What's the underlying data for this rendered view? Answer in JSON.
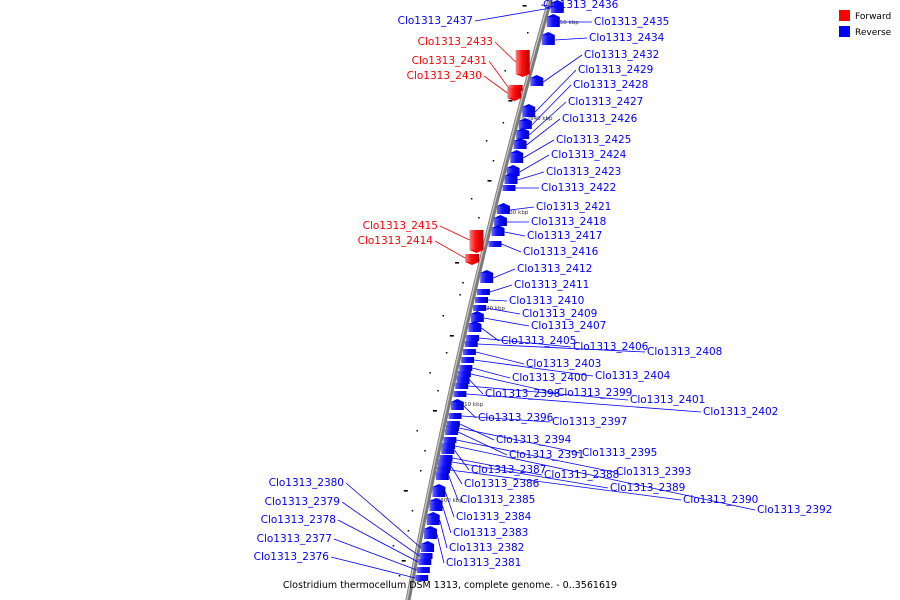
{
  "caption": "Clostridium thermocellum DSM 1313, complete genome. - 0..3561619",
  "colors": {
    "forward": "#ff0000",
    "reverse": "#0000ff",
    "backbone": "#808080"
  },
  "legend": [
    {
      "label": "Forward",
      "strand": "forward"
    },
    {
      "label": "Reverse",
      "strand": "reverse"
    }
  ],
  "ticks": [
    "2850 kbp",
    "2840 kbp",
    "2830 kbp",
    "2820 kbp",
    "2810 kbp",
    "2800 kbp"
  ],
  "genes": [
    {
      "name": "Clo1313_2437",
      "strand": "reverse"
    },
    {
      "name": "Clo1313_2436",
      "strand": "reverse"
    },
    {
      "name": "Clo1313_2435",
      "strand": "reverse"
    },
    {
      "name": "Clo1313_2434",
      "strand": "reverse"
    },
    {
      "name": "Clo1313_2433",
      "strand": "forward"
    },
    {
      "name": "Clo1313_2432",
      "strand": "reverse"
    },
    {
      "name": "Clo1313_2431",
      "strand": "forward"
    },
    {
      "name": "Clo1313_2429",
      "strand": "reverse"
    },
    {
      "name": "Clo1313_2430",
      "strand": "forward"
    },
    {
      "name": "Clo1313_2428",
      "strand": "reverse"
    },
    {
      "name": "Clo1313_2427",
      "strand": "reverse"
    },
    {
      "name": "Clo1313_2426",
      "strand": "reverse"
    },
    {
      "name": "Clo1313_2425",
      "strand": "reverse"
    },
    {
      "name": "Clo1313_2424",
      "strand": "reverse"
    },
    {
      "name": "Clo1313_2423",
      "strand": "reverse"
    },
    {
      "name": "Clo1313_2422",
      "strand": "reverse"
    },
    {
      "name": "Clo1313_2421",
      "strand": "reverse"
    },
    {
      "name": "Clo1313_2418",
      "strand": "reverse"
    },
    {
      "name": "Clo1313_2415",
      "strand": "forward"
    },
    {
      "name": "Clo1313_2417",
      "strand": "reverse"
    },
    {
      "name": "Clo1313_2414",
      "strand": "forward"
    },
    {
      "name": "Clo1313_2416",
      "strand": "reverse"
    },
    {
      "name": "Clo1313_2412",
      "strand": "reverse"
    },
    {
      "name": "Clo1313_2411",
      "strand": "reverse"
    },
    {
      "name": "Clo1313_2410",
      "strand": "reverse"
    },
    {
      "name": "Clo1313_2409",
      "strand": "reverse"
    },
    {
      "name": "Clo1313_2407",
      "strand": "reverse"
    },
    {
      "name": "Clo1313_2405",
      "strand": "reverse"
    },
    {
      "name": "Clo1313_2406",
      "strand": "reverse"
    },
    {
      "name": "Clo1313_2408",
      "strand": "reverse"
    },
    {
      "name": "Clo1313_2403",
      "strand": "reverse"
    },
    {
      "name": "Clo1313_2404",
      "strand": "reverse"
    },
    {
      "name": "Clo1313_2400",
      "strand": "reverse"
    },
    {
      "name": "Clo1313_2398",
      "strand": "reverse"
    },
    {
      "name": "Clo1313_2399",
      "strand": "reverse"
    },
    {
      "name": "Clo1313_2401",
      "strand": "reverse"
    },
    {
      "name": "Clo1313_2402",
      "strand": "reverse"
    },
    {
      "name": "Clo1313_2396",
      "strand": "reverse"
    },
    {
      "name": "Clo1313_2397",
      "strand": "reverse"
    },
    {
      "name": "Clo1313_2394",
      "strand": "reverse"
    },
    {
      "name": "Clo1313_2391",
      "strand": "reverse"
    },
    {
      "name": "Clo1313_2395",
      "strand": "reverse"
    },
    {
      "name": "Clo1313_2387",
      "strand": "reverse"
    },
    {
      "name": "Clo1313_2393",
      "strand": "reverse"
    },
    {
      "name": "Clo1313_2388",
      "strand": "reverse"
    },
    {
      "name": "Clo1313_2386",
      "strand": "reverse"
    },
    {
      "name": "Clo1313_2389",
      "strand": "reverse"
    },
    {
      "name": "Clo1313_2385",
      "strand": "reverse"
    },
    {
      "name": "Clo1313_2390",
      "strand": "reverse"
    },
    {
      "name": "Clo1313_2392",
      "strand": "reverse"
    },
    {
      "name": "Clo1313_2384",
      "strand": "reverse"
    },
    {
      "name": "Clo1313_2383",
      "strand": "reverse"
    },
    {
      "name": "Clo1313_2382",
      "strand": "reverse"
    },
    {
      "name": "Clo1313_2381",
      "strand": "reverse"
    },
    {
      "name": "Clo1313_2380",
      "strand": "reverse"
    },
    {
      "name": "Clo1313_2379",
      "strand": "reverse"
    },
    {
      "name": "Clo1313_2378",
      "strand": "reverse"
    },
    {
      "name": "Clo1313_2377",
      "strand": "reverse"
    },
    {
      "name": "Clo1313_2376",
      "strand": "reverse"
    }
  ]
}
